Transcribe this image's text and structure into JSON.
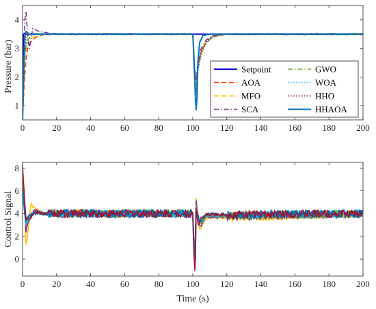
{
  "chart_data": [
    {
      "type": "line",
      "xlabel": "",
      "ylabel": "Pressure (bar)",
      "xlim": [
        0,
        200
      ],
      "ylim": [
        0.5,
        4.5
      ],
      "xticks": [
        "0",
        "20",
        "40",
        "60",
        "80",
        "100",
        "120",
        "140",
        "160",
        "180",
        "200"
      ],
      "yticks": [
        "1",
        "2",
        "3",
        "4"
      ],
      "grid": false,
      "legend_position": "right, two columns",
      "series": [
        {
          "name": "Setpoint",
          "color": "#0000cc",
          "style": "solid",
          "x": [
            0,
            0.5,
            100,
            100.5,
            200
          ],
          "y": [
            0.5,
            3.5,
            3.5,
            3.5,
            3.5
          ]
        },
        {
          "name": "AOA",
          "color": "#ff3300",
          "style": "dashed",
          "x": [
            0,
            1,
            2,
            3,
            5,
            8,
            12,
            20,
            100,
            101,
            102,
            103,
            105,
            108,
            112,
            120,
            200
          ],
          "y": [
            0.5,
            1.8,
            2.6,
            3.0,
            3.25,
            3.4,
            3.48,
            3.5,
            3.5,
            2.2,
            1.9,
            2.4,
            2.9,
            3.2,
            3.4,
            3.5,
            3.5
          ]
        },
        {
          "name": "MFO",
          "color": "#ffbf00",
          "style": "dashed",
          "x": [
            0,
            1,
            2,
            3,
            5,
            8,
            12,
            20,
            100,
            101,
            102,
            103,
            105,
            108,
            112,
            120,
            200
          ],
          "y": [
            0.5,
            2.2,
            2.9,
            3.2,
            3.35,
            3.45,
            3.5,
            3.5,
            3.5,
            2.0,
            1.6,
            2.2,
            2.8,
            3.2,
            3.4,
            3.5,
            3.5
          ]
        },
        {
          "name": "SCA",
          "color": "#7e2f8e",
          "style": "dashdot",
          "x": [
            0,
            1,
            1.5,
            2,
            2.5,
            3,
            4,
            6,
            9,
            14,
            20,
            100,
            101,
            102,
            103,
            105,
            108,
            112,
            120,
            200
          ],
          "y": [
            0.5,
            3.4,
            4.1,
            4.3,
            3.9,
            3.4,
            3.0,
            3.7,
            3.6,
            3.55,
            3.5,
            3.5,
            2.4,
            1.9,
            2.5,
            3.0,
            3.3,
            3.45,
            3.5,
            3.5
          ]
        },
        {
          "name": "GWO",
          "color": "#66aa22",
          "style": "dashdot",
          "x": [
            0,
            1,
            2,
            3,
            5,
            8,
            12,
            20,
            100,
            101,
            102,
            103,
            105,
            108,
            112,
            120,
            200
          ],
          "y": [
            0.5,
            2.6,
            3.1,
            3.3,
            3.45,
            3.52,
            3.5,
            3.5,
            3.5,
            2.1,
            1.7,
            2.4,
            2.9,
            3.25,
            3.42,
            3.5,
            3.5
          ]
        },
        {
          "name": "WOA",
          "color": "#22bbee",
          "style": "dotted",
          "x": [
            0,
            1,
            2,
            3,
            5,
            8,
            12,
            20,
            100,
            101,
            102,
            103,
            105,
            108,
            112,
            120,
            200
          ],
          "y": [
            0.5,
            2.4,
            3.0,
            3.25,
            3.42,
            3.5,
            3.5,
            3.5,
            3.5,
            2.0,
            1.5,
            2.2,
            2.8,
            3.2,
            3.4,
            3.5,
            3.5
          ]
        },
        {
          "name": "HHO",
          "color": "#a2142f",
          "style": "dotted",
          "x": [
            0,
            1,
            2,
            3,
            5,
            8,
            12,
            20,
            100,
            101,
            102,
            103,
            105,
            108,
            112,
            120,
            200
          ],
          "y": [
            0.5,
            2.8,
            3.3,
            3.45,
            3.52,
            3.5,
            3.5,
            3.5,
            3.5,
            1.9,
            1.4,
            2.3,
            2.9,
            3.25,
            3.45,
            3.5,
            3.5
          ]
        },
        {
          "name": "HHAOA",
          "color": "#0072bd",
          "style": "solid",
          "x": [
            0,
            0.5,
            1,
            1.5,
            2,
            3,
            4,
            6,
            10,
            20,
            100,
            100.5,
            101,
            101.5,
            102,
            102.5,
            103,
            104,
            106,
            110,
            120,
            200
          ],
          "y": [
            0.5,
            1.5,
            2.8,
            3.4,
            3.6,
            3.55,
            3.5,
            3.5,
            3.5,
            3.5,
            3.5,
            3.0,
            2.2,
            1.3,
            0.85,
            1.3,
            2.5,
            3.2,
            3.45,
            3.5,
            3.5,
            3.5
          ]
        }
      ]
    },
    {
      "type": "line",
      "xlabel": "Time (s)",
      "ylabel": "Control Signal",
      "xlim": [
        0,
        200
      ],
      "ylim": [
        -1.5,
        8.5
      ],
      "xticks": [
        "0",
        "20",
        "40",
        "60",
        "80",
        "100",
        "120",
        "140",
        "160",
        "180",
        "200"
      ],
      "yticks": [
        "0",
        "2",
        "4",
        "6",
        "8"
      ],
      "grid": false,
      "steady_value": 4,
      "series": [
        {
          "name": "AOA",
          "color": "#ff3300",
          "x": [
            0,
            1,
            2,
            4,
            7,
            12,
            100,
            101,
            102,
            104,
            108,
            200
          ],
          "y": [
            8.2,
            5.5,
            3.0,
            3.4,
            4.2,
            4.0,
            4.0,
            -0.9,
            4.8,
            3.0,
            3.8,
            4.0
          ]
        },
        {
          "name": "MFO",
          "color": "#ffbf00",
          "x": [
            0,
            1,
            2,
            3,
            5,
            8,
            12,
            100,
            101,
            102,
            104,
            108,
            200
          ],
          "y": [
            8.0,
            6.0,
            1.3,
            2.2,
            4.8,
            4.4,
            4.0,
            4.0,
            -0.9,
            5.4,
            2.6,
            3.6,
            4.0
          ]
        },
        {
          "name": "SCA",
          "color": "#7e2f8e",
          "x": [
            0,
            1,
            2,
            4,
            7,
            12,
            100,
            101,
            102,
            104,
            108,
            200
          ],
          "y": [
            8.3,
            5.0,
            2.5,
            3.6,
            4.3,
            4.0,
            4.0,
            -0.9,
            5.0,
            2.8,
            3.7,
            4.0
          ]
        },
        {
          "name": "GWO",
          "color": "#66aa22",
          "x": [
            0,
            1,
            2,
            4,
            7,
            12,
            100,
            101,
            102,
            104,
            108,
            200
          ],
          "y": [
            7.0,
            4.6,
            3.2,
            3.6,
            4.1,
            4.0,
            4.0,
            -0.9,
            4.6,
            3.0,
            3.8,
            4.0
          ]
        },
        {
          "name": "WOA",
          "color": "#22bbee",
          "x": [
            0,
            1,
            2,
            4,
            7,
            12,
            100,
            101,
            102,
            104,
            108,
            200
          ],
          "y": [
            6.5,
            4.5,
            3.1,
            3.7,
            4.1,
            4.0,
            4.0,
            -0.9,
            4.6,
            3.1,
            3.8,
            4.0
          ]
        },
        {
          "name": "HHAOA",
          "color": "#0072bd",
          "x": [
            0,
            1,
            2,
            4,
            7,
            12,
            100,
            101,
            102,
            104,
            108,
            200
          ],
          "y": [
            6.0,
            4.4,
            3.4,
            3.8,
            4.0,
            4.0,
            4.0,
            -0.9,
            4.4,
            3.3,
            3.9,
            4.0
          ]
        },
        {
          "name": "HHO",
          "color": "#a2142f",
          "x": [
            0,
            1,
            2,
            4,
            7,
            12,
            100,
            100.5,
            101,
            101.5,
            102,
            103,
            105,
            108,
            200
          ],
          "y": [
            7.8,
            5.8,
            3.6,
            3.6,
            4.1,
            4.0,
            4.0,
            2.0,
            -1.0,
            -1.0,
            4.6,
            3.0,
            3.6,
            3.9,
            4.0
          ]
        }
      ]
    }
  ],
  "legend": {
    "entries": [
      "Setpoint",
      "AOA",
      "MFO",
      "SCA",
      "GWO",
      "WOA",
      "HHO",
      "HHAOA"
    ]
  }
}
